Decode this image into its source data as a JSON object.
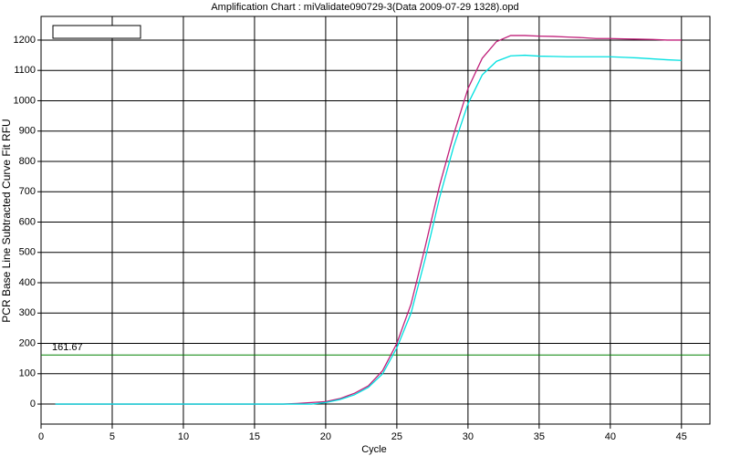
{
  "chart_data": {
    "type": "line",
    "title": "Amplification Chart : miValidate090729-3(Data 2009-07-29 1328).opd",
    "x_label": "Cycle",
    "y_label": "PCR Base Line Subtracted Curve Fit RFU",
    "x": [
      1,
      2,
      3,
      4,
      5,
      6,
      7,
      8,
      9,
      10,
      11,
      12,
      13,
      14,
      15,
      16,
      17,
      18,
      19,
      20,
      21,
      22,
      23,
      24,
      25,
      26,
      27,
      28,
      29,
      30,
      31,
      32,
      33,
      34,
      35,
      36,
      37,
      38,
      39,
      40,
      41,
      42,
      43,
      44,
      45
    ],
    "series": [
      {
        "color": "#c0207a",
        "values": [
          0,
          0,
          0,
          0,
          0,
          0,
          0,
          0,
          0,
          0,
          0,
          0,
          0,
          0,
          0,
          0,
          0,
          2,
          5,
          8,
          18,
          35,
          60,
          110,
          200,
          330,
          520,
          720,
          890,
          1040,
          1140,
          1195,
          1215,
          1215,
          1213,
          1212,
          1210,
          1208,
          1205,
          1205,
          1204,
          1203,
          1202,
          1200,
          1200
        ]
      },
      {
        "color": "#00e0e0",
        "values": [
          0,
          0,
          0,
          0,
          0,
          0,
          0,
          0,
          0,
          0,
          0,
          0,
          0,
          0,
          0,
          0,
          0,
          0,
          0,
          5,
          15,
          30,
          55,
          100,
          185,
          300,
          480,
          680,
          850,
          990,
          1085,
          1130,
          1148,
          1150,
          1147,
          1146,
          1145,
          1145,
          1145,
          1145,
          1143,
          1141,
          1138,
          1135,
          1133
        ]
      }
    ],
    "threshold": {
      "value": 161.67,
      "label": "161.67",
      "color": "#008000"
    },
    "xlim": [
      0,
      47
    ],
    "ylim": [
      -66,
      1278
    ],
    "xticks": [
      0,
      5,
      10,
      15,
      20,
      25,
      30,
      35,
      40,
      45
    ],
    "yticks": [
      0,
      100,
      200,
      300,
      400,
      500,
      600,
      700,
      800,
      900,
      1000,
      1100,
      1200
    ],
    "grid": true
  }
}
